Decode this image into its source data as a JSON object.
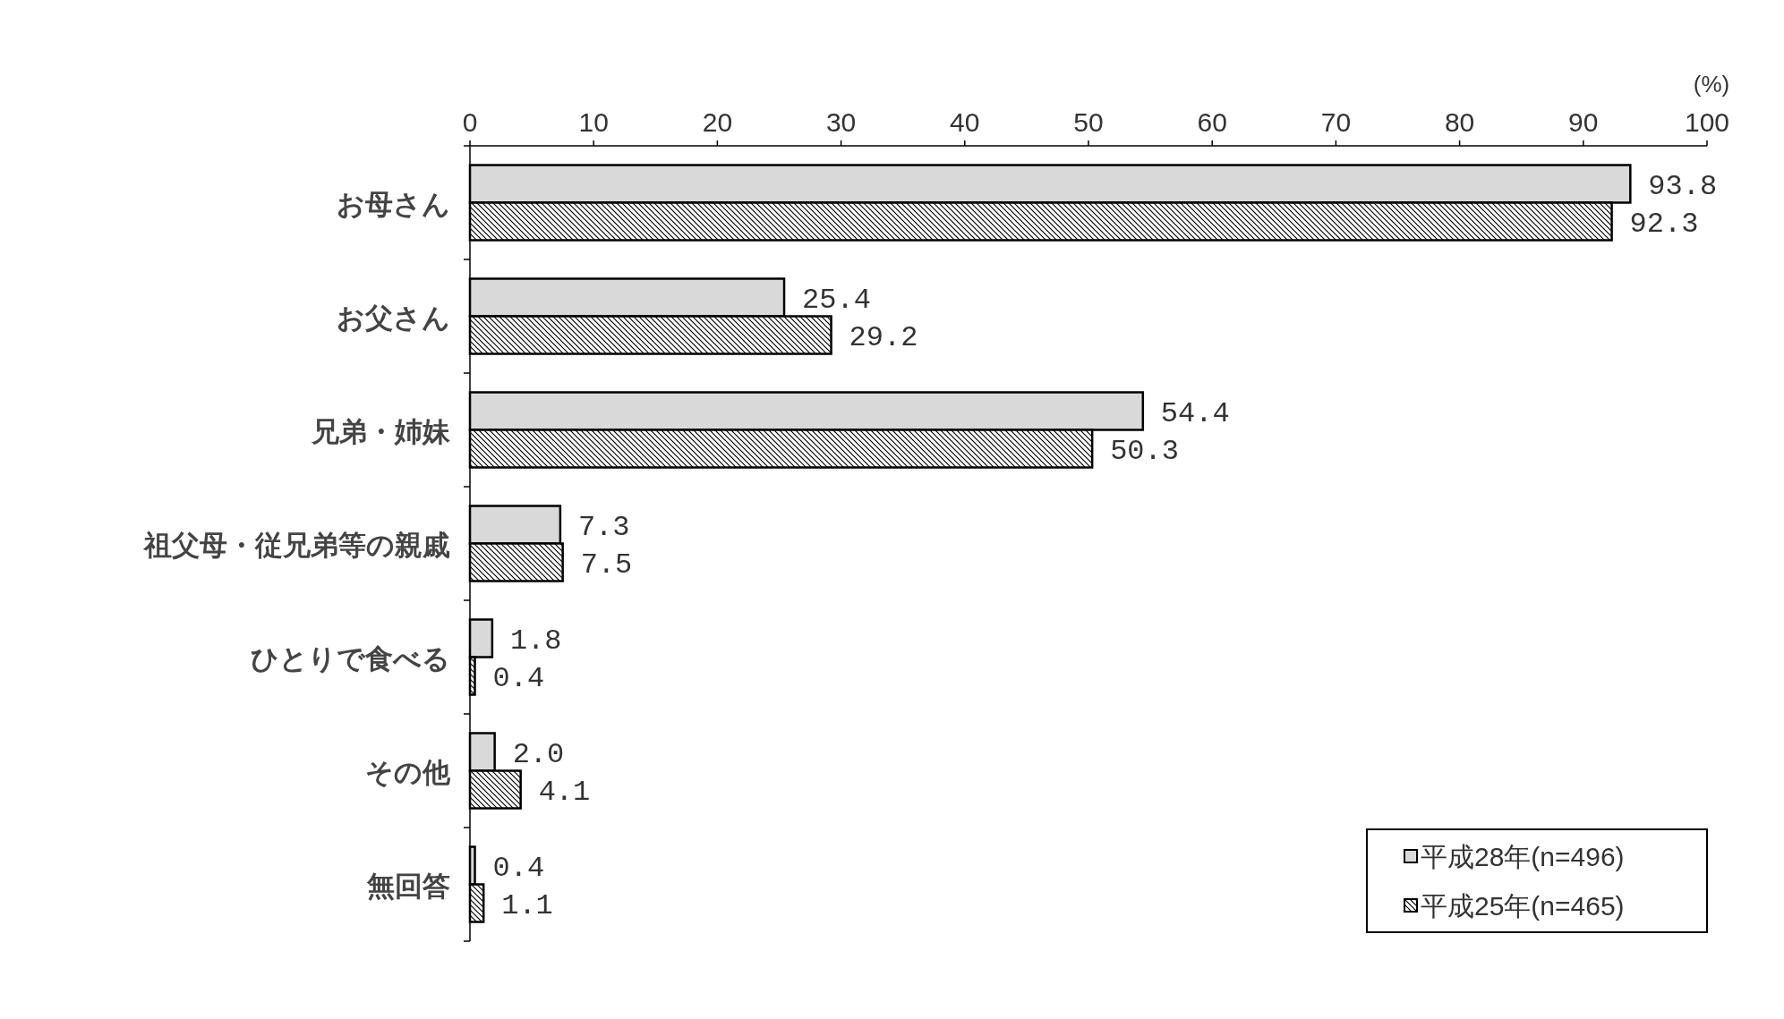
{
  "chart_data": {
    "type": "bar",
    "orientation": "horizontal",
    "xlabel": "(%)",
    "categories": [
      "お母さん",
      "お父さん",
      "兄弟・姉妹",
      "祖父母・従兄弟等の親戚",
      "ひとりで食べる",
      "その他",
      "無回答"
    ],
    "series": [
      {
        "name": "平成28年(n=496)",
        "color": "#d9d9d9",
        "values": [
          93.8,
          25.4,
          54.4,
          7.3,
          1.8,
          2.0,
          0.4
        ],
        "value_labels": [
          "93.8",
          "25.4",
          "54.4",
          "7.3",
          "1.8",
          "2.0",
          "0.4"
        ]
      },
      {
        "name": "平成25年(n=465)",
        "color": "#000000",
        "values": [
          92.3,
          29.2,
          50.3,
          7.5,
          0.4,
          4.1,
          1.1
        ],
        "value_labels": [
          "92.3",
          "29.2",
          "50.3",
          "7.5",
          "0.4",
          "4.1",
          "1.1"
        ]
      }
    ],
    "xlim": [
      0,
      100
    ],
    "xticks": [
      0,
      10,
      20,
      30,
      40,
      50,
      60,
      70,
      80,
      90,
      100
    ],
    "grid": false,
    "legend": "bottom right"
  }
}
